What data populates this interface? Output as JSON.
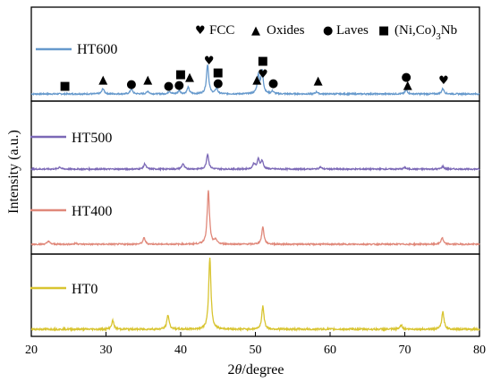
{
  "chart_data": {
    "type": "line",
    "xlabel_prefix": "2",
    "xlabel_theta": "θ",
    "xlabel_suffix": "/degree",
    "ylabel": "Intensity (a.u.)",
    "xlim": [
      20,
      80
    ],
    "xticks": [
      "20",
      "30",
      "40",
      "50",
      "60",
      "70",
      "80"
    ],
    "series": [
      {
        "name": "HT600",
        "color": "#6699cc",
        "peaks": [
          [
            29.6,
            0.1
          ],
          [
            33.4,
            0.1
          ],
          [
            35.6,
            0.05
          ],
          [
            38.5,
            0.05
          ],
          [
            39.8,
            0.06
          ],
          [
            41.0,
            0.12
          ],
          [
            43.6,
            0.55
          ],
          [
            44.8,
            0.1
          ],
          [
            50.4,
            0.33
          ],
          [
            50.9,
            0.42
          ],
          [
            52.3,
            0.05
          ],
          [
            58.2,
            0.04
          ],
          [
            70.2,
            0.08
          ],
          [
            75.1,
            0.1
          ]
        ],
        "glyphs": [
          "■",
          "▲",
          "●",
          "▲",
          "●",
          "●",
          "■",
          "▲",
          "♥",
          "■",
          "●",
          "▲",
          "♥",
          "■",
          "●",
          "▲",
          "●",
          "▲",
          "♥"
        ]
      },
      {
        "name": "HT500",
        "color": "#7b68b6",
        "peaks": [
          [
            23.8,
            0.04
          ],
          [
            35.2,
            0.1
          ],
          [
            40.3,
            0.1
          ],
          [
            43.6,
            0.28
          ],
          [
            49.8,
            0.1
          ],
          [
            50.4,
            0.18
          ],
          [
            50.9,
            0.15
          ],
          [
            58.7,
            0.04
          ],
          [
            70.0,
            0.03
          ],
          [
            75.1,
            0.05
          ]
        ]
      },
      {
        "name": "HT400",
        "color": "#e0887a",
        "peaks": [
          [
            22.3,
            0.06
          ],
          [
            26.0,
            0.02
          ],
          [
            35.1,
            0.12
          ],
          [
            43.7,
            1.0
          ],
          [
            44.7,
            0.08
          ],
          [
            51.0,
            0.32
          ],
          [
            75.0,
            0.12
          ]
        ]
      },
      {
        "name": "HT0",
        "color": "#d8c430",
        "peaks": [
          [
            30.9,
            0.12
          ],
          [
            38.3,
            0.2
          ],
          [
            43.9,
            1.0
          ],
          [
            51.0,
            0.32
          ],
          [
            69.5,
            0.06
          ],
          [
            75.1,
            0.24
          ]
        ]
      }
    ],
    "legend": [
      {
        "symbol": "♥",
        "label": "FCC"
      },
      {
        "symbol": "▲",
        "label": "Oxides"
      },
      {
        "symbol": "●",
        "label": "Laves"
      },
      {
        "symbol": "■",
        "label_main": "(Ni,Co)",
        "label_sub": "3",
        "label_tail": "Nb"
      }
    ],
    "legend_position": "top-right",
    "grid": false
  }
}
